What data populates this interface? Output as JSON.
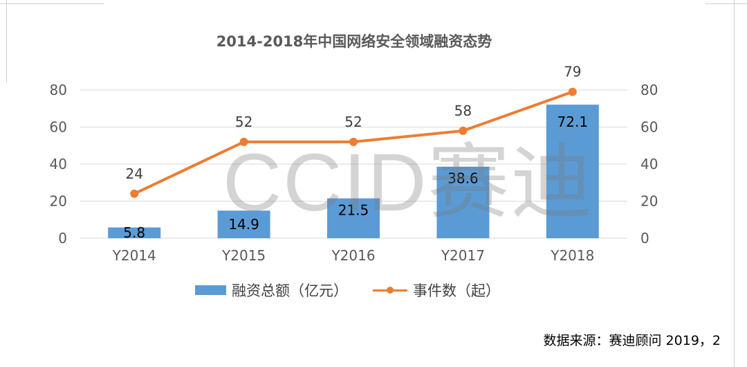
{
  "chart_data": {
    "type": "bar+line",
    "title": "2014-2018年中国网络安全领域融资态势",
    "categories": [
      "Y2014",
      "Y2015",
      "Y2016",
      "Y2017",
      "Y2018"
    ],
    "series": [
      {
        "name": "融资总额（亿元）",
        "type": "bar",
        "axis": "left",
        "color": "#5b9bd5",
        "values": [
          5.8,
          14.9,
          21.5,
          38.6,
          72.1
        ]
      },
      {
        "name": "事件数（起）",
        "type": "line",
        "axis": "right",
        "color": "#ed7d31",
        "values": [
          24,
          52,
          52,
          58,
          79
        ]
      }
    ],
    "yleft_ticks": [
      "0",
      "20",
      "40",
      "60",
      "80"
    ],
    "yright_ticks": [
      "0",
      "20",
      "40",
      "60",
      "80"
    ],
    "ylim": [
      0,
      80
    ],
    "grid": true,
    "legend_position": "bottom"
  },
  "watermark": "CCID赛迪",
  "source": "数据来源：赛迪顾问 2019，2"
}
